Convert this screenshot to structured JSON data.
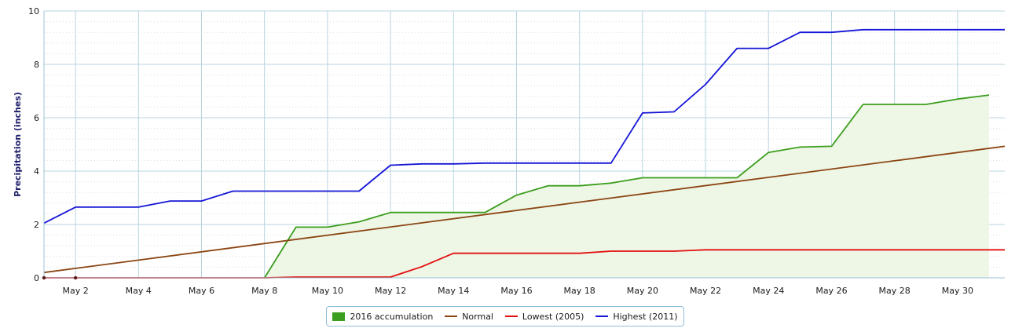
{
  "chart_data": {
    "type": "line",
    "title": "",
    "xlabel": "",
    "ylabel": "Precipitation (inches)",
    "ylim": [
      0,
      10
    ],
    "xlim": [
      1,
      31.5
    ],
    "y_ticks": [
      0,
      2,
      4,
      6,
      8,
      10
    ],
    "x_ticks": [
      2,
      4,
      6,
      8,
      10,
      12,
      14,
      16,
      18,
      20,
      22,
      24,
      26,
      28,
      30
    ],
    "x_tick_labels": [
      "May 2",
      "May 4",
      "May 6",
      "May 8",
      "May 10",
      "May 12",
      "May 14",
      "May 16",
      "May 18",
      "May 20",
      "May 22",
      "May 24",
      "May 26",
      "May 28",
      "May 30"
    ],
    "grid": true,
    "legend_position": "bottom-center",
    "series": [
      {
        "name": "2016 accumulation",
        "kind": "area",
        "color": "#3c9e1e",
        "fill": "#eef6e6",
        "points": [
          [
            8,
            0
          ],
          [
            9,
            1.9
          ],
          [
            10,
            1.9
          ],
          [
            11,
            2.1
          ],
          [
            12,
            2.45
          ],
          [
            13,
            2.45
          ],
          [
            14,
            2.45
          ],
          [
            15,
            2.45
          ],
          [
            16,
            3.1
          ],
          [
            17,
            3.45
          ],
          [
            18,
            3.45
          ],
          [
            19,
            3.55
          ],
          [
            20,
            3.75
          ],
          [
            21,
            3.75
          ],
          [
            22,
            3.75
          ],
          [
            23,
            3.75
          ],
          [
            24,
            4.7
          ],
          [
            25,
            4.9
          ],
          [
            26,
            4.93
          ],
          [
            27,
            6.5
          ],
          [
            28,
            6.5
          ],
          [
            29,
            6.5
          ],
          [
            30,
            6.7
          ],
          [
            31,
            6.85
          ]
        ]
      },
      {
        "name": "Normal",
        "kind": "line",
        "color": "#8b4513",
        "points": [
          [
            1,
            0.2
          ],
          [
            31.5,
            4.93
          ]
        ]
      },
      {
        "name": "Lowest (2005)",
        "kind": "line",
        "color": "#e30e0e",
        "points": [
          [
            1,
            0
          ],
          [
            8,
            0
          ],
          [
            9,
            0.03
          ],
          [
            10,
            0.03
          ],
          [
            11,
            0.03
          ],
          [
            12,
            0.03
          ],
          [
            13,
            0.42
          ],
          [
            14,
            0.92
          ],
          [
            15,
            0.92
          ],
          [
            16,
            0.92
          ],
          [
            17,
            0.92
          ],
          [
            18,
            0.92
          ],
          [
            19,
            1.0
          ],
          [
            20,
            1.0
          ],
          [
            21,
            1.0
          ],
          [
            22,
            1.05
          ],
          [
            23,
            1.05
          ],
          [
            24,
            1.05
          ],
          [
            25,
            1.05
          ],
          [
            26,
            1.05
          ],
          [
            27,
            1.05
          ],
          [
            28,
            1.05
          ],
          [
            29,
            1.05
          ],
          [
            30,
            1.05
          ],
          [
            31.5,
            1.05
          ]
        ]
      },
      {
        "name": "Highest (2011)",
        "kind": "line",
        "color": "#1515d6",
        "points": [
          [
            1,
            2.05
          ],
          [
            2,
            2.65
          ],
          [
            3,
            2.65
          ],
          [
            4,
            2.65
          ],
          [
            5,
            2.88
          ],
          [
            6,
            2.88
          ],
          [
            7,
            3.25
          ],
          [
            8,
            3.25
          ],
          [
            9,
            3.25
          ],
          [
            10,
            3.25
          ],
          [
            11,
            3.25
          ],
          [
            12,
            4.22
          ],
          [
            13,
            4.27
          ],
          [
            14,
            4.27
          ],
          [
            15,
            4.3
          ],
          [
            16,
            4.3
          ],
          [
            17,
            4.3
          ],
          [
            18,
            4.3
          ],
          [
            19,
            4.3
          ],
          [
            20,
            6.18
          ],
          [
            21,
            6.22
          ],
          [
            22,
            7.25
          ],
          [
            23,
            8.6
          ],
          [
            24,
            8.6
          ],
          [
            25,
            9.2
          ],
          [
            26,
            9.2
          ],
          [
            27,
            9.3
          ],
          [
            28,
            9.3
          ],
          [
            29,
            9.3
          ],
          [
            30,
            9.3
          ],
          [
            31.5,
            9.3
          ]
        ]
      }
    ]
  }
}
